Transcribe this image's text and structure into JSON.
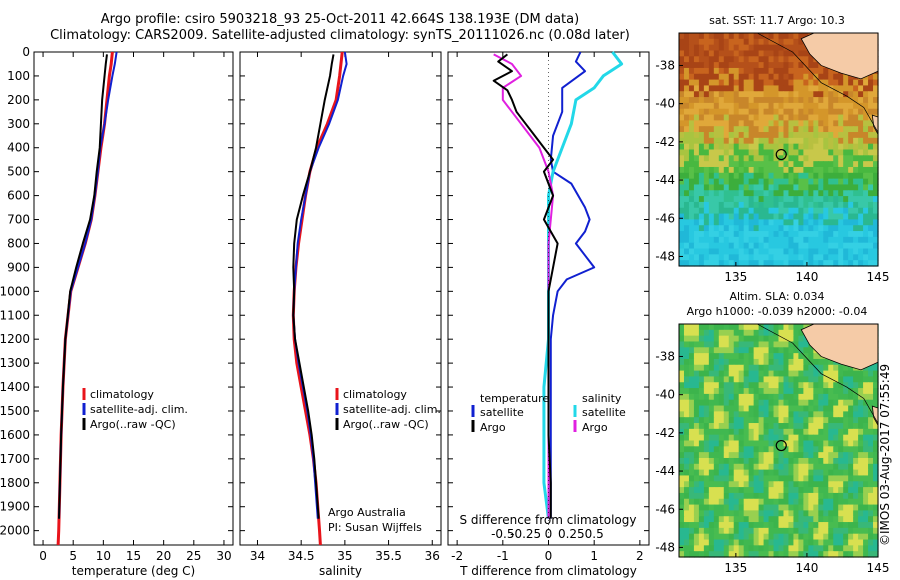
{
  "header": {
    "title_line1": "Argo profile: csiro 5903218_93 25-Oct-2011 42.664S 138.193E (DM data)",
    "title_line2": "Climatology: CARS2009. Satellite-adjusted climatology: synTS_20111026.nc (0.08d later)"
  },
  "colors": {
    "climatology": "#e8141b",
    "satellite": "#1020d0",
    "argo": "#000000",
    "sat_salinity": "#22d8e8",
    "argo_salinity": "#e020e0"
  },
  "chart_data": [
    {
      "type": "line",
      "panel": "temperature",
      "xlabel": "temperature (deg C)",
      "ylabel": "",
      "xlim": [
        -1.5,
        31.5
      ],
      "ylim": [
        2060,
        0
      ],
      "x_ticks": [
        0,
        5,
        10,
        15,
        20,
        25,
        30
      ],
      "y_ticks": [
        0,
        100,
        200,
        300,
        400,
        500,
        600,
        700,
        800,
        900,
        1000,
        1100,
        1200,
        1300,
        1400,
        1500,
        1600,
        1700,
        1800,
        1900,
        2000
      ],
      "legend": [
        "climatology",
        "satellite-adj. clim.",
        "Argo(..raw -QC)"
      ],
      "series": [
        {
          "name": "climatology",
          "depth": [
            0,
            50,
            100,
            200,
            300,
            400,
            500,
            600,
            700,
            800,
            900,
            1000,
            1200,
            1400,
            1600,
            1800,
            2000,
            2060
          ],
          "values": [
            11.5,
            11.3,
            11.0,
            10.6,
            10.2,
            9.6,
            9.1,
            8.6,
            8.0,
            7.0,
            5.8,
            4.6,
            3.7,
            3.3,
            3.0,
            2.8,
            2.6,
            2.5
          ]
        },
        {
          "name": "satellite-adj. clim.",
          "depth": [
            0,
            50,
            100,
            200,
            300,
            400,
            500,
            600,
            700,
            800,
            900,
            1000,
            1200,
            1400,
            1600,
            1800,
            1950
          ],
          "values": [
            12.2,
            11.9,
            11.5,
            10.8,
            10.2,
            9.5,
            9.1,
            8.6,
            8.0,
            7.0,
            5.8,
            4.6,
            3.7,
            3.3,
            3.0,
            2.8,
            2.65
          ]
        },
        {
          "name": "Argo(..raw -QC)",
          "depth": [
            10,
            50,
            100,
            150,
            200,
            300,
            400,
            500,
            600,
            700,
            800,
            900,
            1000,
            1200,
            1400,
            1600,
            1800,
            1950
          ],
          "values": [
            10.6,
            10.4,
            10.2,
            10.0,
            9.8,
            9.6,
            9.4,
            8.9,
            8.5,
            7.8,
            6.6,
            5.5,
            4.5,
            3.7,
            3.3,
            3.0,
            2.8,
            2.65
          ]
        }
      ]
    },
    {
      "type": "line",
      "panel": "salinity",
      "xlabel": "salinity",
      "ylabel": "",
      "xlim": [
        33.8,
        36.1
      ],
      "ylim": [
        2060,
        0
      ],
      "x_ticks": [
        34,
        34.5,
        35,
        35.5,
        36
      ],
      "legend": [
        "climatology",
        "satellite-adj. clim.",
        "Argo(..raw -QC)"
      ],
      "annotation": [
        "Argo Australia",
        "PI: Susan Wijffels"
      ],
      "series": [
        {
          "name": "climatology",
          "depth": [
            0,
            100,
            200,
            300,
            400,
            500,
            600,
            700,
            800,
            900,
            1000,
            1100,
            1200,
            1300,
            1400,
            1500,
            1600,
            1700,
            1800,
            1900,
            2000,
            2060
          ],
          "values": [
            34.97,
            34.94,
            34.9,
            34.8,
            34.68,
            34.6,
            34.55,
            34.51,
            34.47,
            34.44,
            34.42,
            34.41,
            34.42,
            34.45,
            34.5,
            34.55,
            34.6,
            34.64,
            34.67,
            34.69,
            34.71,
            34.72
          ]
        },
        {
          "name": "satellite-adj. clim.",
          "depth": [
            0,
            50,
            100,
            200,
            300,
            400,
            500,
            600,
            700,
            800,
            900,
            1000,
            1100,
            1200,
            1300,
            1400,
            1500,
            1600,
            1700,
            1800,
            1900,
            1950
          ],
          "values": [
            35.0,
            35.02,
            34.98,
            34.92,
            34.82,
            34.7,
            34.6,
            34.55,
            34.5,
            34.46,
            34.44,
            34.42,
            34.41,
            34.43,
            34.47,
            34.52,
            34.57,
            34.61,
            34.64,
            34.66,
            34.68,
            34.69
          ]
        },
        {
          "name": "Argo(..raw -QC)",
          "depth": [
            10,
            50,
            100,
            200,
            300,
            400,
            500,
            600,
            700,
            800,
            900,
            1000,
            1100,
            1200,
            1300,
            1400,
            1500,
            1600,
            1700,
            1800,
            1900,
            1950
          ],
          "values": [
            34.87,
            34.85,
            34.83,
            34.77,
            34.72,
            34.67,
            34.6,
            34.52,
            34.45,
            34.42,
            34.41,
            34.42,
            34.41,
            34.43,
            34.48,
            34.53,
            34.58,
            34.62,
            34.65,
            34.67,
            34.69,
            34.7
          ]
        }
      ]
    },
    {
      "type": "line",
      "panel": "difference",
      "xlabel": "T difference from climatology",
      "top_label": "S difference from climatology",
      "xlim": [
        -2.2,
        2.2
      ],
      "ylim": [
        2060,
        0
      ],
      "x_ticks": [
        -2,
        -1,
        0,
        1,
        2
      ],
      "s_ticks": [
        "-0.5",
        "-0.25",
        "0",
        "0.25",
        "0.5"
      ],
      "legend": {
        "temperature": [
          "satellite",
          "Argo"
        ],
        "salinity": [
          "satellite",
          "Argo"
        ]
      },
      "legend_titles": [
        "temperature",
        "salinity"
      ],
      "series": [
        {
          "name": "temperature satellite",
          "depth": [
            0,
            40,
            80,
            150,
            250,
            350,
            450,
            500,
            550,
            650,
            700,
            750,
            800,
            850,
            900,
            950,
            1000,
            1100,
            1200,
            1400,
            1600,
            1800,
            1950
          ],
          "values": [
            0.7,
            0.6,
            0.8,
            0.3,
            0.3,
            0.1,
            0.05,
            0.1,
            0.5,
            0.8,
            0.9,
            0.8,
            0.6,
            0.8,
            1.0,
            0.4,
            0.2,
            0.1,
            0.05,
            0.05,
            0.05,
            0.05,
            0.05
          ]
        },
        {
          "name": "temperature Argo",
          "depth": [
            10,
            40,
            80,
            120,
            160,
            200,
            250,
            300,
            350,
            400,
            450,
            500,
            600,
            700,
            800,
            900,
            1000,
            1100,
            1200,
            1400,
            1600,
            1800,
            1950
          ],
          "values": [
            -0.9,
            -1.1,
            -0.8,
            -1.2,
            -0.9,
            -0.8,
            -0.7,
            -0.5,
            -0.3,
            -0.1,
            0.1,
            -0.1,
            0.1,
            -0.1,
            0.2,
            0.1,
            0.0,
            0.0,
            0.0,
            0.0,
            0.0,
            0.05,
            0.05
          ]
        },
        {
          "name": "salinity satellite",
          "depth": [
            0,
            50,
            100,
            150,
            200,
            300,
            400,
            500,
            600,
            800,
            1000,
            1200,
            1400,
            1600,
            1800,
            1950
          ],
          "values": [
            0.7,
            0.8,
            0.6,
            0.5,
            0.3,
            0.25,
            0.15,
            0.05,
            0.0,
            0.0,
            0.0,
            0.0,
            -0.05,
            -0.05,
            -0.05,
            0.0
          ]
        },
        {
          "name": "salinity Argo",
          "depth": [
            10,
            50,
            100,
            150,
            200,
            250,
            300,
            350,
            400,
            500,
            600,
            800,
            1000,
            1200,
            1400,
            1600,
            1800,
            1950
          ],
          "values": [
            -0.6,
            -0.4,
            -0.3,
            -0.5,
            -0.5,
            -0.4,
            -0.3,
            -0.2,
            -0.1,
            0.0,
            0.05,
            0.0,
            0.0,
            0.0,
            0.0,
            0.0,
            0.0,
            0.0
          ]
        }
      ]
    },
    {
      "type": "heatmap",
      "panel": "map-sst",
      "title": "sat. SST: 11.7  Argo: 10.3",
      "xlim": [
        131,
        145
      ],
      "ylim": [
        -48.5,
        -36.3
      ],
      "x_ticks": [
        135,
        140,
        145
      ],
      "y_ticks": [
        -38,
        -40,
        -42,
        -44,
        -46,
        -48
      ],
      "float_position": {
        "lon": 138.193,
        "lat": -42.664
      }
    },
    {
      "type": "heatmap",
      "panel": "map-sla",
      "title": "Altim. SLA: 0.034",
      "subtitle": "Argo h1000: -0.039 h2000: -0.04",
      "xlim": [
        131,
        145
      ],
      "ylim": [
        -48.5,
        -36.3
      ],
      "x_ticks": [
        135,
        140,
        145
      ],
      "y_ticks": [
        -38,
        -40,
        -42,
        -44,
        -46,
        -48
      ],
      "float_position": {
        "lon": 138.193,
        "lat": -42.664
      }
    }
  ],
  "footer": {
    "credit": "©IMOS 03-Aug-2017 07:55:49"
  }
}
